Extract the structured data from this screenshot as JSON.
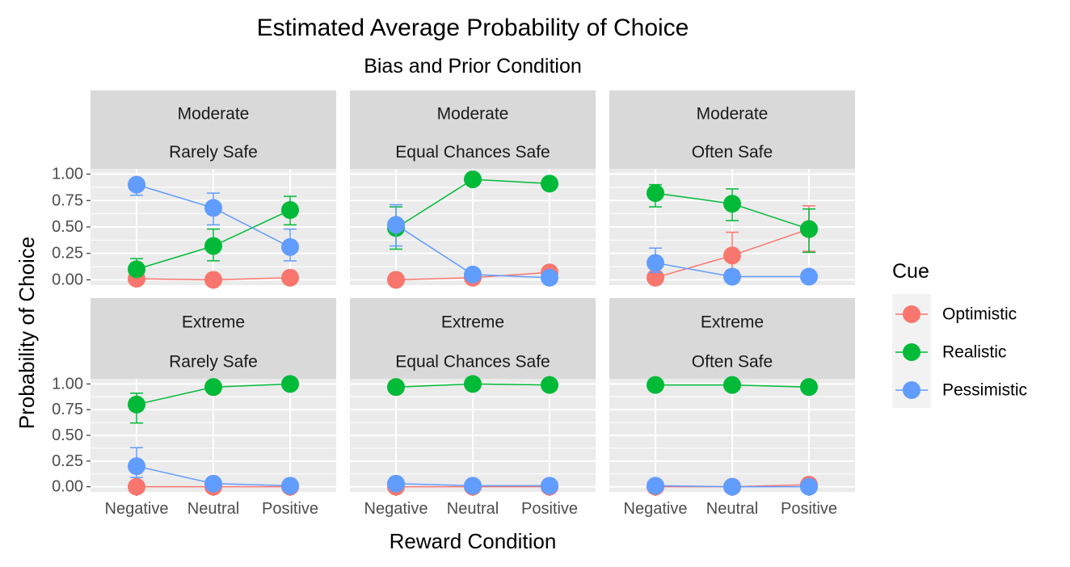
{
  "chart_data": {
    "type": "line",
    "title": "Estimated Average Probability of Choice",
    "subtitle": "Bias and Prior Condition",
    "xlabel": "Reward Condition",
    "ylabel": "Probability of Choice",
    "categories": [
      "Negative",
      "Neutral",
      "Positive"
    ],
    "ylim": [
      0,
      1
    ],
    "yticks": [
      "0.00",
      "0.25",
      "0.50",
      "0.75",
      "1.00"
    ],
    "ytick_values": [
      0,
      0.25,
      0.5,
      0.75,
      1.0
    ],
    "legend": {
      "title": "Cue",
      "position": "right",
      "entries": [
        "Optimistic",
        "Realistic",
        "Pessimistic"
      ]
    },
    "colors": {
      "Optimistic": "#F8766D",
      "Realistic": "#00BA38",
      "Pessimistic": "#619CFF"
    },
    "panels": [
      {
        "bias": "Moderate",
        "prior": "Rarely Safe",
        "series": [
          {
            "name": "Optimistic",
            "values": [
              0.01,
              0.0,
              0.02
            ],
            "lower": [
              0.0,
              0.0,
              0.0
            ],
            "upper": [
              0.02,
              0.01,
              0.04
            ]
          },
          {
            "name": "Realistic",
            "values": [
              0.1,
              0.32,
              0.66
            ],
            "lower": [
              0.05,
              0.18,
              0.52
            ],
            "upper": [
              0.2,
              0.48,
              0.79
            ]
          },
          {
            "name": "Pessimistic",
            "values": [
              0.9,
              0.68,
              0.31
            ],
            "lower": [
              0.8,
              0.52,
              0.18
            ],
            "upper": [
              0.95,
              0.82,
              0.48
            ]
          }
        ]
      },
      {
        "bias": "Moderate",
        "prior": "Equal Chances Safe",
        "series": [
          {
            "name": "Optimistic",
            "values": [
              0.0,
              0.02,
              0.07
            ],
            "lower": [
              0.0,
              0.0,
              0.03
            ],
            "upper": [
              0.01,
              0.04,
              0.11
            ]
          },
          {
            "name": "Realistic",
            "values": [
              0.49,
              0.95,
              0.91
            ],
            "lower": [
              0.29,
              0.92,
              0.88
            ],
            "upper": [
              0.69,
              0.97,
              0.94
            ]
          },
          {
            "name": "Pessimistic",
            "values": [
              0.52,
              0.05,
              0.02
            ],
            "lower": [
              0.32,
              0.02,
              0.0
            ],
            "upper": [
              0.71,
              0.08,
              0.04
            ]
          }
        ]
      },
      {
        "bias": "Moderate",
        "prior": "Often Safe",
        "series": [
          {
            "name": "Optimistic",
            "values": [
              0.02,
              0.23,
              0.48
            ],
            "lower": [
              0.0,
              0.09,
              0.27
            ],
            "upper": [
              0.05,
              0.45,
              0.7
            ]
          },
          {
            "name": "Realistic",
            "values": [
              0.82,
              0.72,
              0.48
            ],
            "lower": [
              0.69,
              0.56,
              0.26
            ],
            "upper": [
              0.9,
              0.86,
              0.67
            ]
          },
          {
            "name": "Pessimistic",
            "values": [
              0.16,
              0.03,
              0.03
            ],
            "lower": [
              0.07,
              0.01,
              0.01
            ],
            "upper": [
              0.3,
              0.06,
              0.06
            ]
          }
        ]
      },
      {
        "bias": "Extreme",
        "prior": "Rarely Safe",
        "series": [
          {
            "name": "Optimistic",
            "values": [
              0.0,
              0.0,
              0.0
            ],
            "lower": [
              0.0,
              0.0,
              0.0
            ],
            "upper": [
              0.01,
              0.01,
              0.01
            ]
          },
          {
            "name": "Realistic",
            "values": [
              0.8,
              0.97,
              1.0
            ],
            "lower": [
              0.62,
              0.94,
              0.99
            ],
            "upper": [
              0.91,
              0.99,
              1.0
            ]
          },
          {
            "name": "Pessimistic",
            "values": [
              0.2,
              0.03,
              0.01
            ],
            "lower": [
              0.09,
              0.01,
              0.0
            ],
            "upper": [
              0.38,
              0.06,
              0.02
            ]
          }
        ]
      },
      {
        "bias": "Extreme",
        "prior": "Equal Chances Safe",
        "series": [
          {
            "name": "Optimistic",
            "values": [
              0.0,
              0.0,
              0.0
            ],
            "lower": [
              0.0,
              0.0,
              0.0
            ],
            "upper": [
              0.01,
              0.01,
              0.01
            ]
          },
          {
            "name": "Realistic",
            "values": [
              0.97,
              1.0,
              0.99
            ],
            "lower": [
              0.95,
              0.99,
              0.98
            ],
            "upper": [
              0.99,
              1.0,
              1.0
            ]
          },
          {
            "name": "Pessimistic",
            "values": [
              0.03,
              0.01,
              0.01
            ],
            "lower": [
              0.01,
              0.0,
              0.0
            ],
            "upper": [
              0.05,
              0.02,
              0.02
            ]
          }
        ]
      },
      {
        "bias": "Extreme",
        "prior": "Often Safe",
        "series": [
          {
            "name": "Optimistic",
            "values": [
              0.0,
              0.0,
              0.02
            ],
            "lower": [
              0.0,
              0.0,
              0.01
            ],
            "upper": [
              0.01,
              0.01,
              0.03
            ]
          },
          {
            "name": "Realistic",
            "values": [
              0.99,
              0.99,
              0.97
            ],
            "lower": [
              0.98,
              0.98,
              0.96
            ],
            "upper": [
              1.0,
              1.0,
              0.99
            ]
          },
          {
            "name": "Pessimistic",
            "values": [
              0.01,
              0.0,
              0.0
            ],
            "lower": [
              0.0,
              0.0,
              0.0
            ],
            "upper": [
              0.02,
              0.01,
              0.01
            ]
          }
        ]
      }
    ]
  }
}
